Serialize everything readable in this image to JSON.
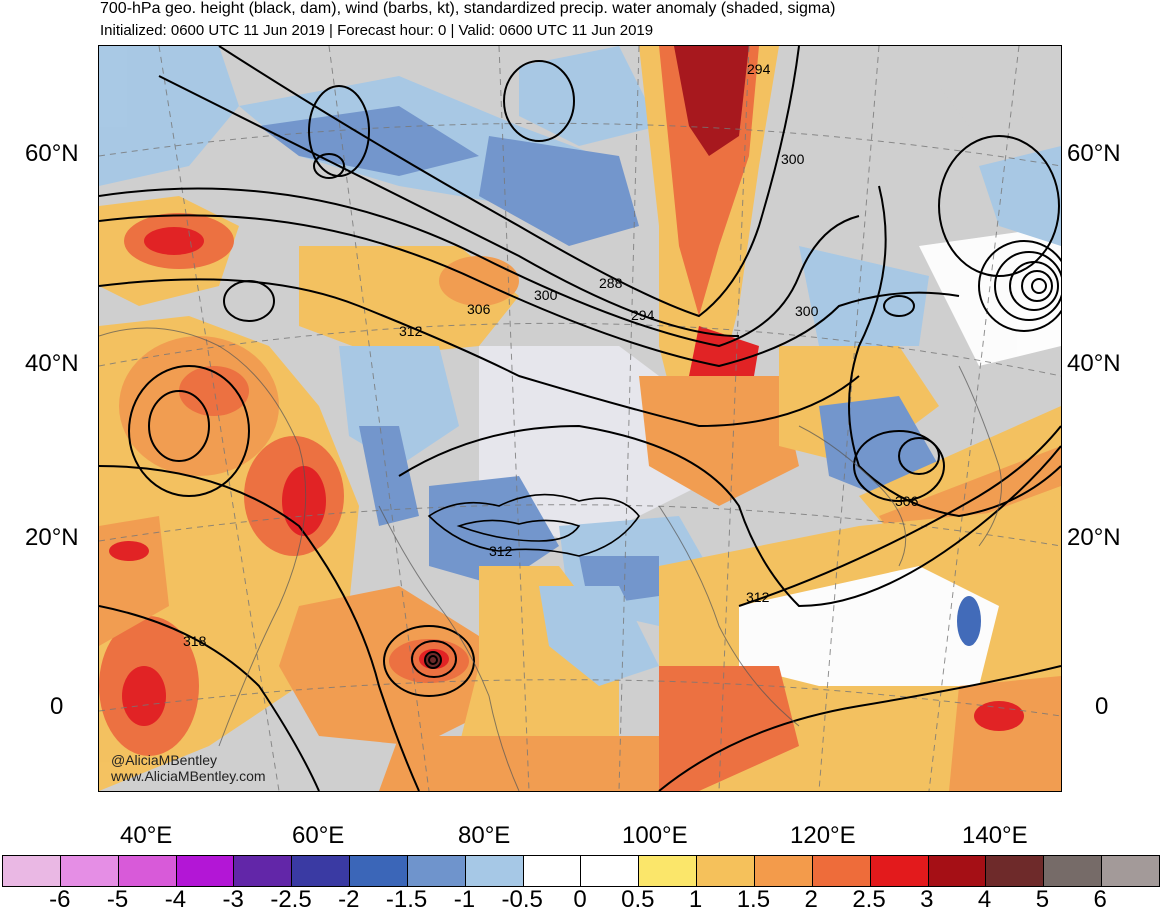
{
  "title": "700-hPa geo. height (black, dam), wind (barbs, kt), standardized precip. water anomaly (shaded, sigma)",
  "subtitle": "Initialized: 0600 UTC 11 Jun 2019 | Forecast hour: 0 | Valid: 0600 UTC 11 Jun 2019",
  "lat_labels_left": [
    "60°N",
    "40°N",
    "20°N",
    "0"
  ],
  "lat_labels_right": [
    "60°N",
    "40°N",
    "20°N",
    "0"
  ],
  "lon_labels": [
    "40°E",
    "60°E",
    "80°E",
    "100°E",
    "120°E",
    "140°E"
  ],
  "contour_labels": [
    "294",
    "300",
    "288",
    "300",
    "294",
    "306",
    "312",
    "300",
    "306",
    "312",
    "312",
    "318"
  ],
  "credit": {
    "handle": "@AliciaMBentley",
    "site": "www.AliciaMBentley.com"
  },
  "colorbar": {
    "colors": [
      "#eab8e4",
      "#e58ee5",
      "#d85ad9",
      "#b316d6",
      "#6226a8",
      "#3a3aa3",
      "#3b66b8",
      "#6f94cc",
      "#a6c8e6",
      "#ffffff",
      "#ffffff",
      "#fbe66a",
      "#f5c15b",
      "#f39b4b",
      "#ee6c3a",
      "#e31a1c",
      "#a50f15",
      "#6e2a2a",
      "#766b68",
      "#a39a99"
    ],
    "labels": [
      "-6",
      "-5",
      "-4",
      "-3",
      "-2.5",
      "-2",
      "-1.5",
      "-1",
      "-0.5",
      "0",
      "0.5",
      "1",
      "1.5",
      "2",
      "2.5",
      "3",
      "4",
      "5",
      "6"
    ]
  }
}
